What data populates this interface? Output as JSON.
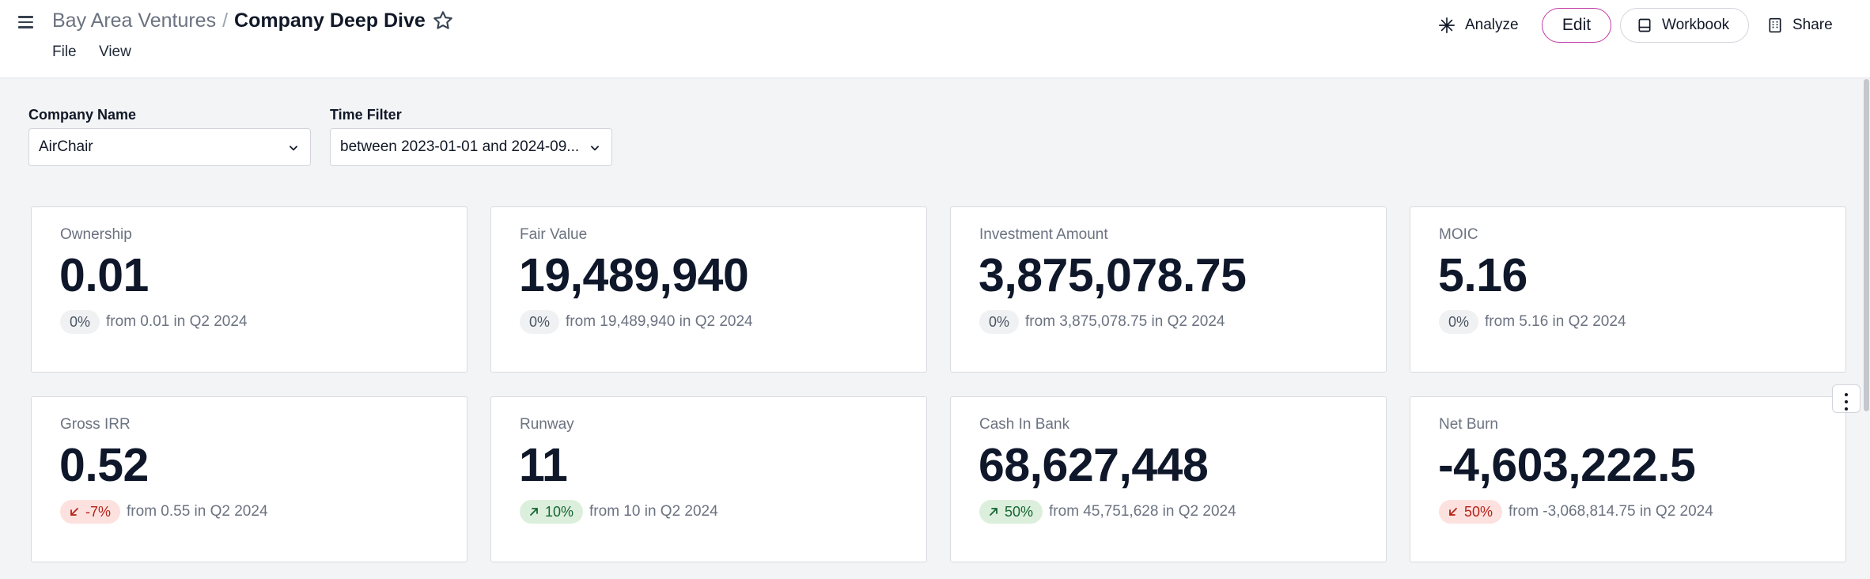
{
  "header": {
    "org": "Bay Area Ventures",
    "separator": "/",
    "page_title": "Company Deep Dive",
    "menus": {
      "file": "File",
      "view": "View"
    },
    "buttons": {
      "analyze": "Analyze",
      "edit": "Edit",
      "workbook": "Workbook",
      "share": "Share"
    }
  },
  "filters": {
    "company": {
      "label": "Company Name",
      "value": "AirChair"
    },
    "time": {
      "label": "Time Filter",
      "value": "between 2023-01-01 and 2024-09..."
    }
  },
  "colors": {
    "accent": "#c13ba6",
    "positive": "#166534",
    "negative": "#b42318"
  },
  "icons": [
    "menu-icon",
    "star-icon",
    "sparkle-icon",
    "workbook-icon",
    "share-icon",
    "chevron-down-icon",
    "more-vertical-icon",
    "arrow-up-right-icon",
    "arrow-down-left-icon"
  ],
  "cards": [
    {
      "title": "Ownership",
      "value": "0.01",
      "change": "0%",
      "trend": "neutral",
      "from": "from 0.01 in Q2 2024"
    },
    {
      "title": "Fair Value",
      "value": "19,489,940",
      "change": "0%",
      "trend": "neutral",
      "from": "from 19,489,940 in Q2 2024"
    },
    {
      "title": "Investment Amount",
      "value": "3,875,078.75",
      "change": "0%",
      "trend": "neutral",
      "from": "from 3,875,078.75 in Q2 2024"
    },
    {
      "title": "MOIC",
      "value": "5.16",
      "change": "0%",
      "trend": "neutral",
      "from": "from 5.16 in Q2 2024"
    },
    {
      "title": "Gross IRR",
      "value": "0.52",
      "change": "-7%",
      "trend": "down",
      "from": "from 0.55 in Q2 2024"
    },
    {
      "title": "Runway",
      "value": "11",
      "change": "10%",
      "trend": "up",
      "from": "from 10 in Q2 2024"
    },
    {
      "title": "Cash In Bank",
      "value": "68,627,448",
      "change": "50%",
      "trend": "up",
      "from": "from 45,751,628 in Q2 2024"
    },
    {
      "title": "Net Burn",
      "value": "-4,603,222.5",
      "change": "50%",
      "trend": "down",
      "from": "from -3,068,814.75 in Q2 2024"
    }
  ]
}
